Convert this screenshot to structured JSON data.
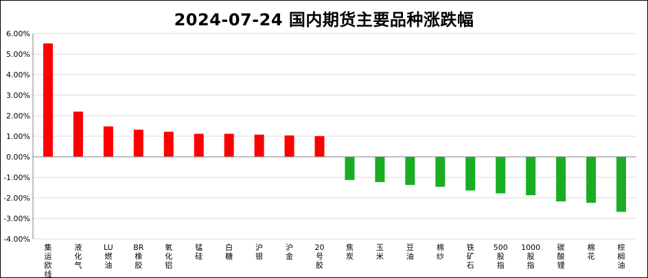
{
  "chart_data": {
    "type": "bar",
    "title": "2024-07-24  国内期货主要品种涨跌幅",
    "xlabel": "",
    "ylabel": "",
    "ylim": [
      -4.0,
      6.0
    ],
    "yticks": [
      "6.00%",
      "5.00%",
      "4.00%",
      "3.00%",
      "2.00%",
      "1.00%",
      "0.00%",
      "-1.00%",
      "-2.00%",
      "-3.00%",
      "-4.00%"
    ],
    "categories": [
      "集运欧线",
      "液化气",
      "LU燃油",
      "BR橡胶",
      "氧化铝",
      "锰硅",
      "白糖",
      "沪银",
      "沪金",
      "20号胶",
      "焦炭",
      "玉米",
      "豆油",
      "棉纱",
      "铁矿石",
      "500股指",
      "1000股指",
      "碳酸锂",
      "棉花",
      "棕榈油"
    ],
    "values": [
      5.52,
      2.2,
      1.48,
      1.32,
      1.22,
      1.12,
      1.12,
      1.08,
      1.04,
      1.01,
      -1.13,
      -1.23,
      -1.37,
      -1.46,
      -1.64,
      -1.78,
      -1.87,
      -2.17,
      -2.24,
      -2.68
    ],
    "grid": true,
    "legend": "none",
    "colors": {
      "positive": "#ff0000",
      "negative": "#1aad24",
      "grid": "#d9d9d9",
      "axis": "#7f7f7f"
    }
  }
}
